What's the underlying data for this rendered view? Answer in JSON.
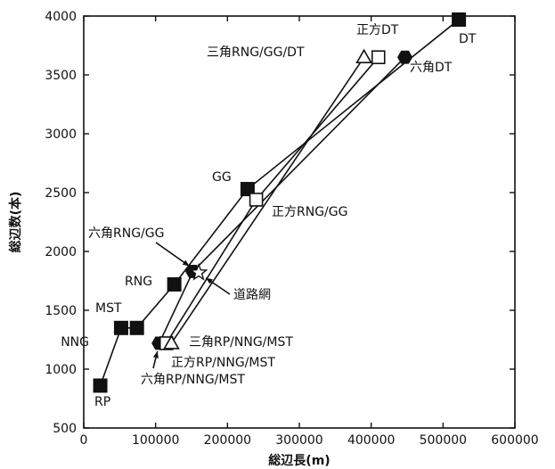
{
  "chart_data": {
    "type": "scatter",
    "xlabel": "総辺長(m)",
    "ylabel": "総辺数(本)",
    "xlim": [
      0,
      600000
    ],
    "ylim": [
      500,
      4000
    ],
    "x_ticks": [
      0,
      100000,
      200000,
      300000,
      400000,
      500000,
      600000
    ],
    "y_ticks": [
      500,
      1000,
      1500,
      2000,
      2500,
      3000,
      3500,
      4000
    ],
    "grid": false,
    "points": [
      {
        "label": "RP",
        "x": 23000,
        "y": 860,
        "marker": "filled-square"
      },
      {
        "label": "NNG",
        "x": 52000,
        "y": 1350,
        "marker": "filled-square"
      },
      {
        "label": "MST",
        "x": 74000,
        "y": 1350,
        "marker": "filled-square"
      },
      {
        "label": "RNG",
        "x": 126000,
        "y": 1720,
        "marker": "filled-square"
      },
      {
        "label": "GG",
        "x": 228000,
        "y": 2530,
        "marker": "filled-square"
      },
      {
        "label": "DT",
        "x": 522000,
        "y": 3970,
        "marker": "filled-square"
      },
      {
        "label": "六角RNG/GG",
        "x": 152000,
        "y": 1830,
        "marker": "filled-hexagon"
      },
      {
        "label": "六角DT",
        "x": 447000,
        "y": 3650,
        "marker": "filled-hexagon"
      },
      {
        "label": "六角RP/NNG/MST",
        "x": 105000,
        "y": 1220,
        "marker": "filled-hexagon"
      },
      {
        "label": "正方DT",
        "x": 410000,
        "y": 3650,
        "marker": "open-square"
      },
      {
        "label": "正方RNG/GG",
        "x": 240000,
        "y": 2440,
        "marker": "open-square"
      },
      {
        "label": "正方RP/NNG/MST",
        "x": 115000,
        "y": 1220,
        "marker": "open-square"
      },
      {
        "label": "三角RNG/GG/DT",
        "x": 390000,
        "y": 3650,
        "marker": "open-triangle"
      },
      {
        "label": "三角RP/NNG/MST",
        "x": 122000,
        "y": 1220,
        "marker": "open-triangle"
      },
      {
        "label": "道路網",
        "x": 160000,
        "y": 1820,
        "marker": "open-star"
      }
    ],
    "series": [
      {
        "marker": "filled-square",
        "x": [
          23000,
          52000,
          74000,
          126000,
          228000,
          522000
        ],
        "y": [
          860,
          1350,
          1350,
          1720,
          2530,
          3970
        ]
      },
      {
        "marker": "filled-hexagon",
        "x": [
          105000,
          152000,
          447000
        ],
        "y": [
          1220,
          1830,
          3650
        ]
      },
      {
        "marker": "open-square",
        "x": [
          115000,
          240000,
          410000
        ],
        "y": [
          1220,
          2440,
          3650
        ]
      },
      {
        "marker": "open-triangle",
        "x": [
          122000,
          390000
        ],
        "y": [
          1220,
          3650
        ]
      }
    ]
  }
}
